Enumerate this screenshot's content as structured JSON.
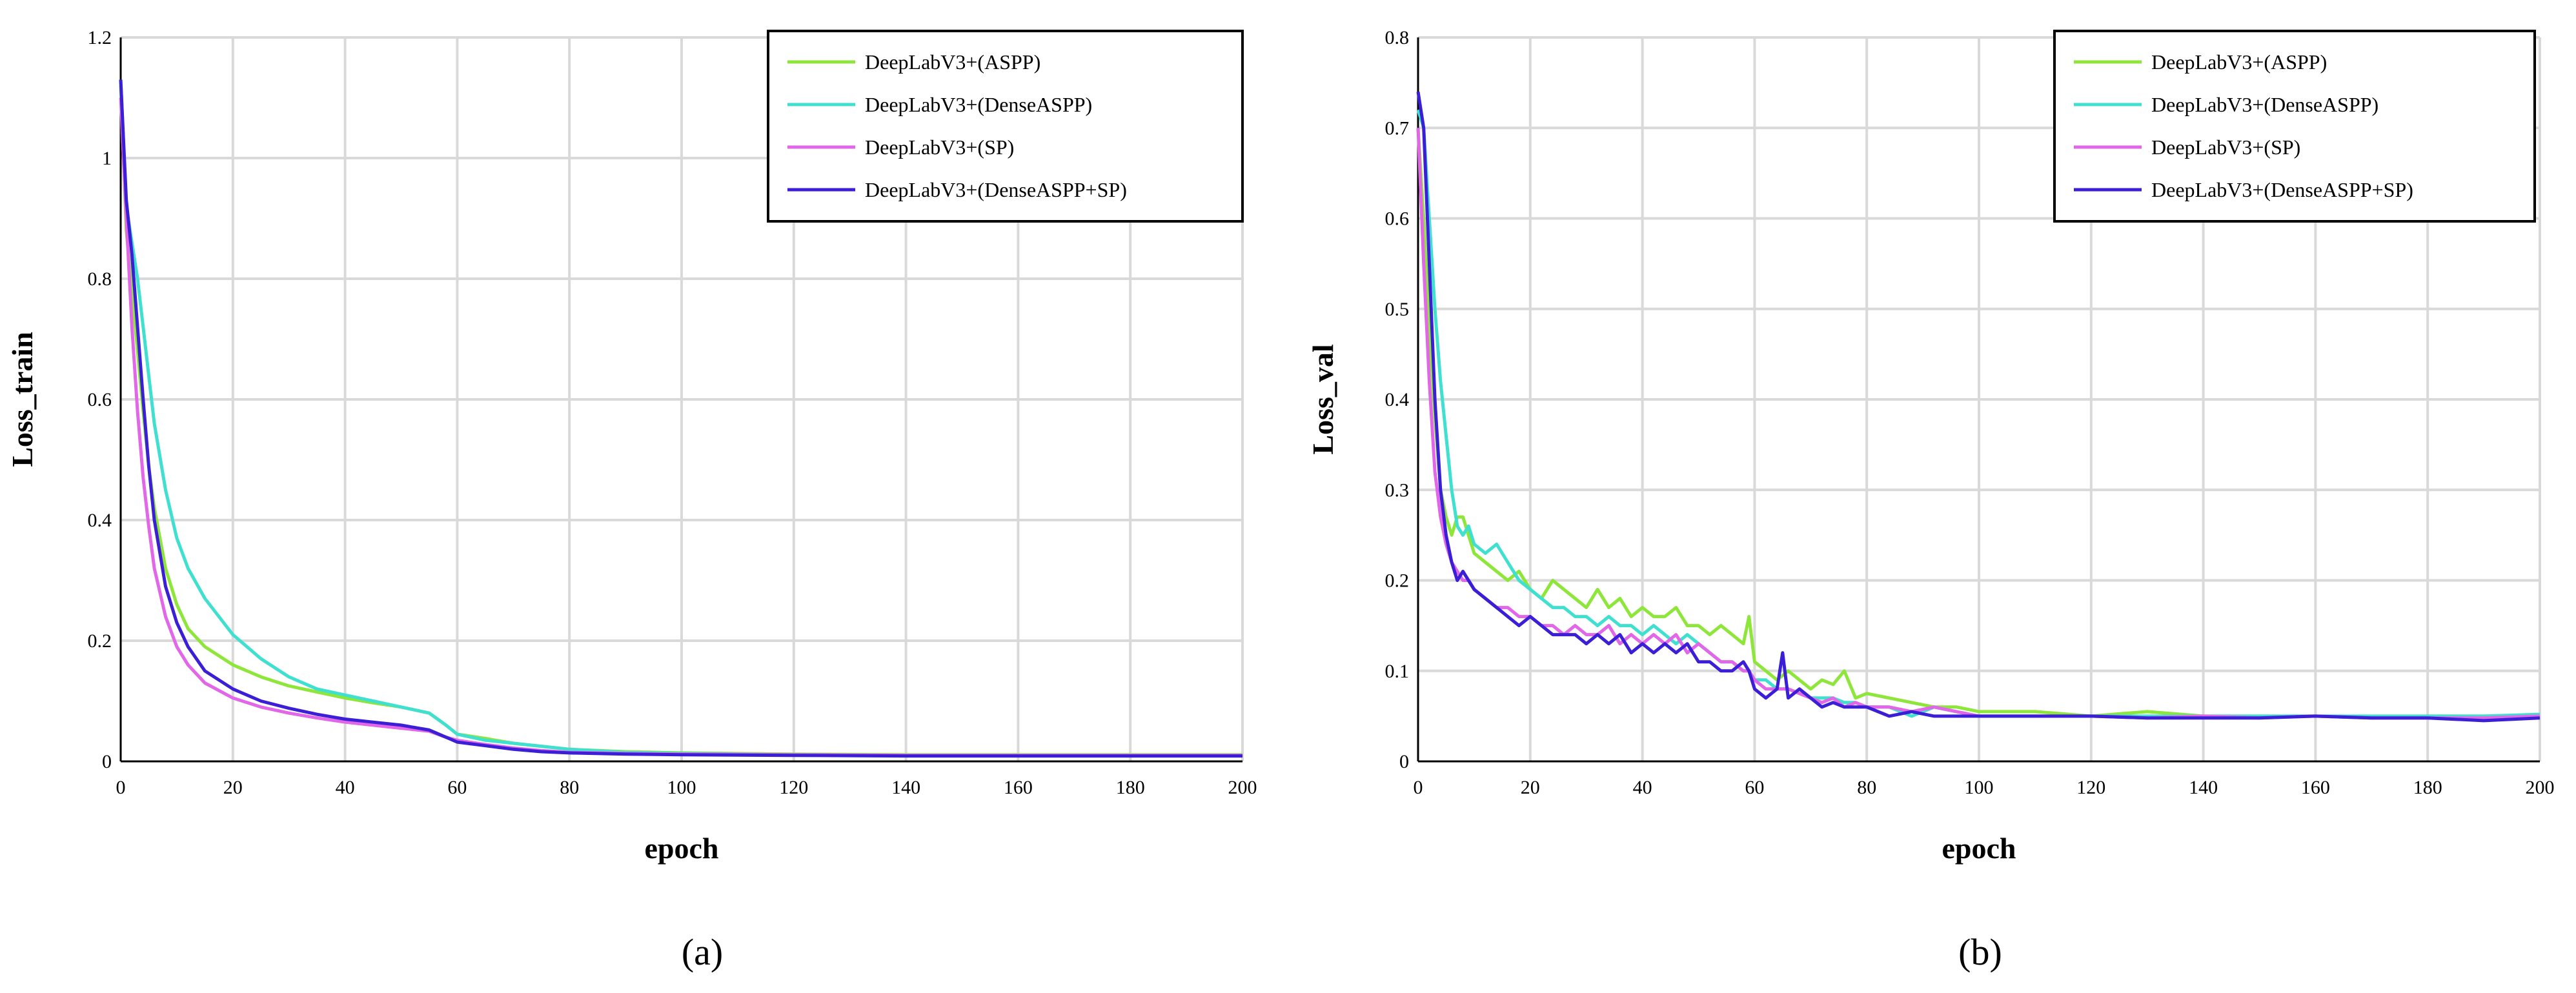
{
  "chart_data": [
    {
      "type": "line",
      "panel_label": "(a)",
      "xlabel": "epoch",
      "ylabel": "Loss_train",
      "xlim": [
        0,
        200
      ],
      "ylim": [
        0,
        1.2
      ],
      "xticks": [
        "0",
        "20",
        "40",
        "60",
        "80",
        "100",
        "120",
        "140",
        "160",
        "180",
        "200"
      ],
      "yticks": [
        "0",
        "0.2",
        "0.4",
        "0.6",
        "0.8",
        "1",
        "1.2"
      ],
      "grid": true,
      "legend_position": "top-right",
      "series": [
        {
          "name": "DeepLabV3+(ASPP)",
          "color": "#8fe63a",
          "x": [
            0,
            1,
            2,
            3,
            4,
            5,
            6,
            8,
            10,
            12,
            15,
            20,
            25,
            30,
            35,
            40,
            45,
            50,
            55,
            58,
            60,
            65,
            70,
            75,
            80,
            90,
            100,
            120,
            140,
            160,
            180,
            200
          ],
          "y": [
            1.12,
            0.88,
            0.78,
            0.68,
            0.58,
            0.49,
            0.42,
            0.32,
            0.26,
            0.22,
            0.19,
            0.16,
            0.14,
            0.125,
            0.115,
            0.105,
            0.097,
            0.09,
            0.08,
            0.06,
            0.045,
            0.038,
            0.03,
            0.025,
            0.02,
            0.016,
            0.014,
            0.012,
            0.011,
            0.011,
            0.011,
            0.011
          ]
        },
        {
          "name": "DeepLabV3+(DenseASPP)",
          "color": "#40e0d0",
          "x": [
            0,
            1,
            2,
            3,
            4,
            5,
            6,
            8,
            10,
            12,
            15,
            20,
            25,
            30,
            35,
            40,
            45,
            50,
            55,
            58,
            60,
            65,
            70,
            75,
            80,
            90,
            100,
            120,
            140,
            160,
            180,
            200
          ],
          "y": [
            1.13,
            0.92,
            0.86,
            0.8,
            0.72,
            0.64,
            0.56,
            0.45,
            0.37,
            0.32,
            0.27,
            0.21,
            0.17,
            0.14,
            0.12,
            0.11,
            0.1,
            0.09,
            0.08,
            0.06,
            0.045,
            0.035,
            0.03,
            0.025,
            0.02,
            0.015,
            0.013,
            0.011,
            0.01,
            0.01,
            0.01,
            0.01
          ]
        },
        {
          "name": "DeepLabV3+(SP)",
          "color": "#e266e8",
          "x": [
            0,
            1,
            2,
            3,
            4,
            5,
            6,
            8,
            10,
            12,
            15,
            20,
            25,
            30,
            35,
            40,
            45,
            50,
            55,
            58,
            60,
            65,
            70,
            75,
            80,
            90,
            100,
            120,
            140,
            160,
            180,
            200
          ],
          "y": [
            1.1,
            0.9,
            0.72,
            0.58,
            0.47,
            0.39,
            0.32,
            0.24,
            0.19,
            0.16,
            0.13,
            0.105,
            0.09,
            0.08,
            0.072,
            0.065,
            0.06,
            0.055,
            0.05,
            0.04,
            0.035,
            0.028,
            0.022,
            0.018,
            0.015,
            0.013,
            0.012,
            0.011,
            0.01,
            0.01,
            0.01,
            0.01
          ]
        },
        {
          "name": "DeepLabV3+(DenseASPP+SP)",
          "color": "#3b1fd6",
          "x": [
            0,
            1,
            2,
            3,
            4,
            5,
            6,
            8,
            10,
            12,
            15,
            20,
            25,
            30,
            35,
            40,
            45,
            50,
            55,
            58,
            60,
            65,
            70,
            75,
            80,
            90,
            100,
            120,
            140,
            160,
            180,
            200
          ],
          "y": [
            1.13,
            0.93,
            0.84,
            0.72,
            0.6,
            0.49,
            0.4,
            0.29,
            0.23,
            0.19,
            0.15,
            0.12,
            0.1,
            0.088,
            0.078,
            0.07,
            0.065,
            0.06,
            0.052,
            0.04,
            0.032,
            0.026,
            0.02,
            0.016,
            0.014,
            0.012,
            0.011,
            0.01,
            0.009,
            0.009,
            0.009,
            0.009
          ]
        }
      ]
    },
    {
      "type": "line",
      "panel_label": "(b)",
      "xlabel": "epoch",
      "ylabel": "Loss_val",
      "xlim": [
        0,
        200
      ],
      "ylim": [
        0,
        0.8
      ],
      "xticks": [
        "0",
        "20",
        "40",
        "60",
        "80",
        "100",
        "120",
        "140",
        "160",
        "180",
        "200"
      ],
      "yticks": [
        "0",
        "0.1",
        "0.2",
        "0.3",
        "0.4",
        "0.5",
        "0.6",
        "0.7",
        "0.8"
      ],
      "grid": true,
      "legend_position": "top-right",
      "series": [
        {
          "name": "DeepLabV3+(ASPP)",
          "color": "#8fe63a",
          "x": [
            0,
            1,
            2,
            3,
            4,
            5,
            6,
            7,
            8,
            9,
            10,
            12,
            14,
            16,
            18,
            20,
            22,
            24,
            26,
            28,
            30,
            32,
            34,
            36,
            38,
            40,
            42,
            44,
            46,
            48,
            50,
            52,
            54,
            56,
            58,
            59,
            60,
            62,
            64,
            66,
            68,
            70,
            72,
            74,
            76,
            78,
            80,
            84,
            88,
            92,
            96,
            100,
            110,
            120,
            130,
            140,
            150,
            160,
            170,
            180,
            190,
            200
          ],
          "y": [
            0.7,
            0.6,
            0.48,
            0.38,
            0.3,
            0.27,
            0.25,
            0.27,
            0.27,
            0.25,
            0.23,
            0.22,
            0.21,
            0.2,
            0.21,
            0.19,
            0.18,
            0.2,
            0.19,
            0.18,
            0.17,
            0.19,
            0.17,
            0.18,
            0.16,
            0.17,
            0.16,
            0.16,
            0.17,
            0.15,
            0.15,
            0.14,
            0.15,
            0.14,
            0.13,
            0.16,
            0.11,
            0.1,
            0.09,
            0.1,
            0.09,
            0.08,
            0.09,
            0.085,
            0.1,
            0.07,
            0.075,
            0.07,
            0.065,
            0.06,
            0.06,
            0.055,
            0.055,
            0.05,
            0.055,
            0.05,
            0.05,
            0.05,
            0.048,
            0.05,
            0.05,
            0.05
          ]
        },
        {
          "name": "DeepLabV3+(DenseASPP)",
          "color": "#40e0d0",
          "x": [
            0,
            1,
            2,
            3,
            4,
            5,
            6,
            7,
            8,
            9,
            10,
            12,
            14,
            16,
            18,
            20,
            22,
            24,
            26,
            28,
            30,
            32,
            34,
            36,
            38,
            40,
            42,
            44,
            46,
            48,
            50,
            52,
            54,
            56,
            58,
            59,
            60,
            62,
            64,
            66,
            68,
            70,
            72,
            74,
            76,
            78,
            80,
            84,
            88,
            92,
            96,
            100,
            110,
            120,
            130,
            140,
            150,
            160,
            170,
            180,
            190,
            200
          ],
          "y": [
            0.72,
            0.7,
            0.6,
            0.5,
            0.42,
            0.36,
            0.3,
            0.26,
            0.25,
            0.26,
            0.24,
            0.23,
            0.24,
            0.22,
            0.2,
            0.19,
            0.18,
            0.17,
            0.17,
            0.16,
            0.16,
            0.15,
            0.16,
            0.15,
            0.15,
            0.14,
            0.15,
            0.14,
            0.13,
            0.14,
            0.13,
            0.12,
            0.11,
            0.11,
            0.1,
            0.1,
            0.09,
            0.09,
            0.08,
            0.08,
            0.075,
            0.07,
            0.07,
            0.07,
            0.065,
            0.065,
            0.06,
            0.06,
            0.05,
            0.06,
            0.055,
            0.05,
            0.05,
            0.05,
            0.05,
            0.05,
            0.05,
            0.05,
            0.05,
            0.05,
            0.05,
            0.052
          ]
        },
        {
          "name": "DeepLabV3+(SP)",
          "color": "#e266e8",
          "x": [
            0,
            1,
            2,
            3,
            4,
            5,
            6,
            7,
            8,
            9,
            10,
            12,
            14,
            16,
            18,
            20,
            22,
            24,
            26,
            28,
            30,
            32,
            34,
            36,
            38,
            40,
            42,
            44,
            46,
            48,
            50,
            52,
            54,
            56,
            58,
            59,
            60,
            62,
            64,
            66,
            68,
            70,
            72,
            74,
            76,
            78,
            80,
            84,
            88,
            92,
            96,
            100,
            110,
            120,
            130,
            140,
            150,
            160,
            170,
            180,
            190,
            200
          ],
          "y": [
            0.7,
            0.55,
            0.42,
            0.32,
            0.27,
            0.24,
            0.22,
            0.21,
            0.2,
            0.2,
            0.19,
            0.18,
            0.17,
            0.17,
            0.16,
            0.16,
            0.15,
            0.15,
            0.14,
            0.15,
            0.14,
            0.14,
            0.15,
            0.13,
            0.14,
            0.13,
            0.14,
            0.13,
            0.14,
            0.12,
            0.13,
            0.12,
            0.11,
            0.11,
            0.1,
            0.1,
            0.09,
            0.08,
            0.08,
            0.08,
            0.075,
            0.07,
            0.065,
            0.07,
            0.06,
            0.065,
            0.06,
            0.06,
            0.055,
            0.06,
            0.055,
            0.05,
            0.05,
            0.05,
            0.048,
            0.05,
            0.048,
            0.05,
            0.048,
            0.048,
            0.048,
            0.05
          ]
        },
        {
          "name": "DeepLabV3+(DenseASPP+SP)",
          "color": "#3b1fd6",
          "x": [
            0,
            1,
            2,
            3,
            4,
            5,
            6,
            7,
            8,
            9,
            10,
            12,
            14,
            16,
            18,
            20,
            22,
            24,
            26,
            28,
            30,
            32,
            34,
            36,
            38,
            40,
            42,
            44,
            46,
            48,
            50,
            52,
            54,
            56,
            58,
            59,
            60,
            62,
            64,
            65,
            66,
            68,
            70,
            72,
            74,
            76,
            78,
            80,
            84,
            88,
            92,
            96,
            100,
            110,
            120,
            130,
            140,
            150,
            160,
            170,
            180,
            190,
            200
          ],
          "y": [
            0.74,
            0.7,
            0.55,
            0.4,
            0.3,
            0.25,
            0.22,
            0.2,
            0.21,
            0.2,
            0.19,
            0.18,
            0.17,
            0.16,
            0.15,
            0.16,
            0.15,
            0.14,
            0.14,
            0.14,
            0.13,
            0.14,
            0.13,
            0.14,
            0.12,
            0.13,
            0.12,
            0.13,
            0.12,
            0.13,
            0.11,
            0.11,
            0.1,
            0.1,
            0.11,
            0.1,
            0.08,
            0.07,
            0.08,
            0.12,
            0.07,
            0.08,
            0.07,
            0.06,
            0.065,
            0.06,
            0.06,
            0.06,
            0.05,
            0.055,
            0.05,
            0.05,
            0.05,
            0.05,
            0.05,
            0.048,
            0.048,
            0.048,
            0.05,
            0.048,
            0.048,
            0.045,
            0.048
          ]
        }
      ]
    }
  ]
}
